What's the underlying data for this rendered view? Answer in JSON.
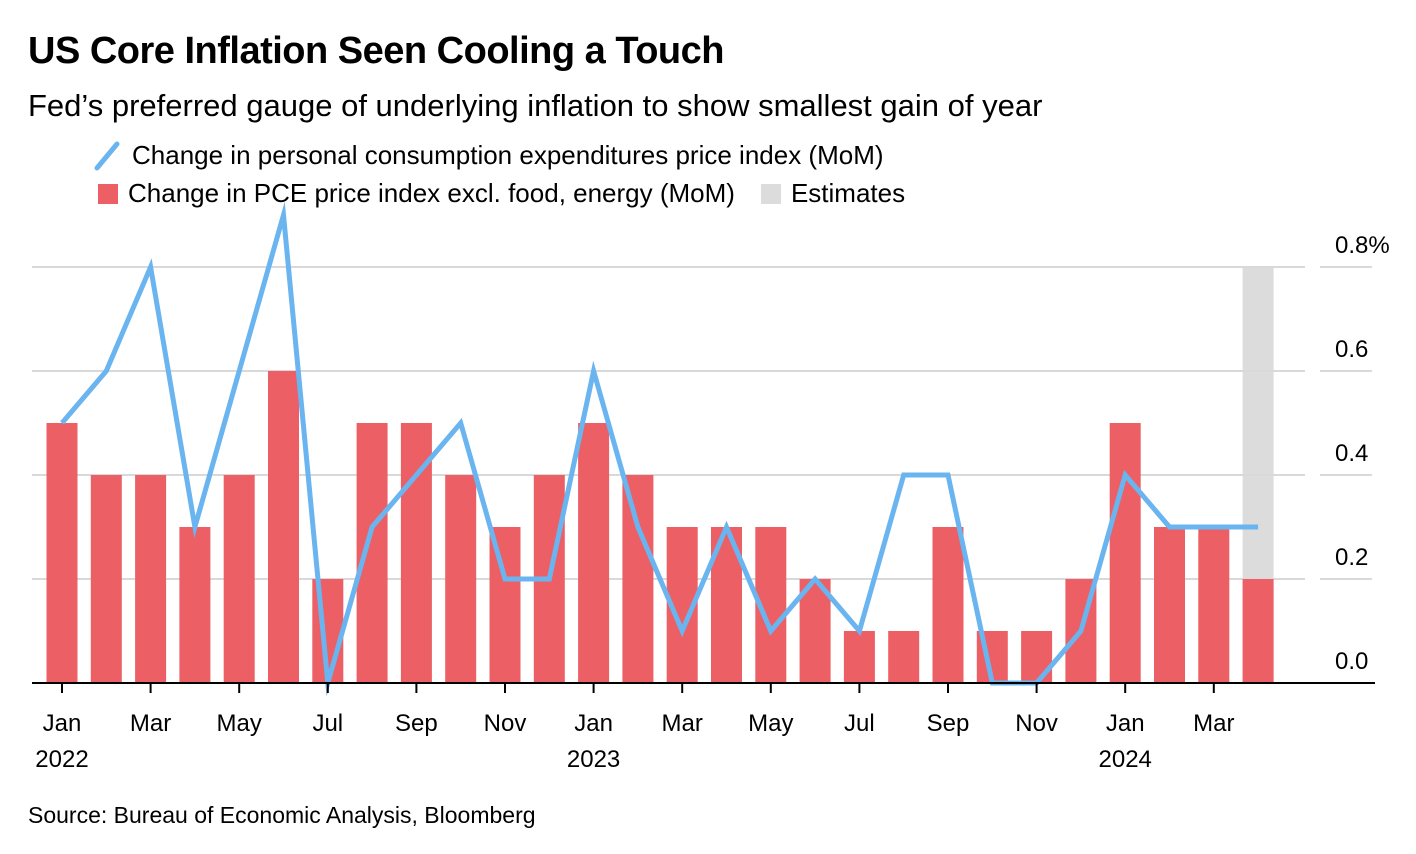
{
  "header": {
    "title": "US Core Inflation Seen Cooling a Touch",
    "subtitle": "Fed’s preferred gauge of underlying inflation to show smallest gain of year"
  },
  "legend": {
    "headline_label": "Change in personal consumption expenditures price index (MoM)",
    "core_label": "Change in PCE price index excl. food, energy (MoM)",
    "estimates_label": "Estimates"
  },
  "source": "Source: Bureau of Economic Analysis, Bloomberg",
  "colors": {
    "line": "#6ab4f0",
    "bar": "#ec5f64",
    "estimate_band": "#dcdcdc",
    "grid": "#d9d9d9"
  },
  "chart_data": {
    "type": "bar",
    "categories": [
      "Jan 2022",
      "Feb 2022",
      "Mar 2022",
      "Apr 2022",
      "May 2022",
      "Jun 2022",
      "Jul 2022",
      "Aug 2022",
      "Sep 2022",
      "Oct 2022",
      "Nov 2022",
      "Dec 2022",
      "Jan 2023",
      "Feb 2023",
      "Mar 2023",
      "Apr 2023",
      "May 2023",
      "Jun 2023",
      "Jul 2023",
      "Aug 2023",
      "Sep 2023",
      "Oct 2023",
      "Nov 2023",
      "Dec 2023",
      "Jan 2024",
      "Feb 2024",
      "Mar 2024",
      "Apr 2024"
    ],
    "series": [
      {
        "name": "Change in PCE price index excl. food, energy (MoM)",
        "type": "bar",
        "values": [
          0.5,
          0.4,
          0.4,
          0.3,
          0.4,
          0.6,
          0.2,
          0.5,
          0.5,
          0.4,
          0.3,
          0.4,
          0.5,
          0.4,
          0.3,
          0.3,
          0.3,
          0.2,
          0.1,
          0.1,
          0.3,
          0.1,
          0.1,
          0.2,
          0.5,
          0.3,
          0.3,
          0.2
        ]
      },
      {
        "name": "Change in personal consumption expenditures price index (MoM)",
        "type": "line",
        "values": [
          0.5,
          0.6,
          0.8,
          0.3,
          0.6,
          0.9,
          0.0,
          0.3,
          0.4,
          0.5,
          0.2,
          0.2,
          0.6,
          0.3,
          0.1,
          0.3,
          0.1,
          0.2,
          0.1,
          0.4,
          0.4,
          0.0,
          0.0,
          0.1,
          0.4,
          0.3,
          0.3,
          0.3
        ]
      }
    ],
    "estimate_index": 27,
    "x_tick_labels": [
      {
        "index": 0,
        "month": "Jan",
        "year": "2022"
      },
      {
        "index": 2,
        "month": "Mar",
        "year": ""
      },
      {
        "index": 4,
        "month": "May",
        "year": ""
      },
      {
        "index": 6,
        "month": "Jul",
        "year": ""
      },
      {
        "index": 8,
        "month": "Sep",
        "year": ""
      },
      {
        "index": 10,
        "month": "Nov",
        "year": ""
      },
      {
        "index": 12,
        "month": "Jan",
        "year": "2023"
      },
      {
        "index": 14,
        "month": "Mar",
        "year": ""
      },
      {
        "index": 16,
        "month": "May",
        "year": ""
      },
      {
        "index": 18,
        "month": "Jul",
        "year": ""
      },
      {
        "index": 20,
        "month": "Sep",
        "year": ""
      },
      {
        "index": 22,
        "month": "Nov",
        "year": ""
      },
      {
        "index": 24,
        "month": "Jan",
        "year": "2024"
      },
      {
        "index": 26,
        "month": "Mar",
        "year": ""
      }
    ],
    "y_ticks": [
      0.0,
      0.2,
      0.4,
      0.6,
      0.8
    ],
    "y_tick_labels": [
      "0.0",
      "0.2",
      "0.4",
      "0.6",
      "0.8%"
    ],
    "ylim": [
      0,
      0.8
    ],
    "y_axis_side": "right",
    "grid": true,
    "legend_position": "top-left",
    "title": "US Core Inflation Seen Cooling a Touch",
    "xlabel": "",
    "ylabel": ""
  }
}
